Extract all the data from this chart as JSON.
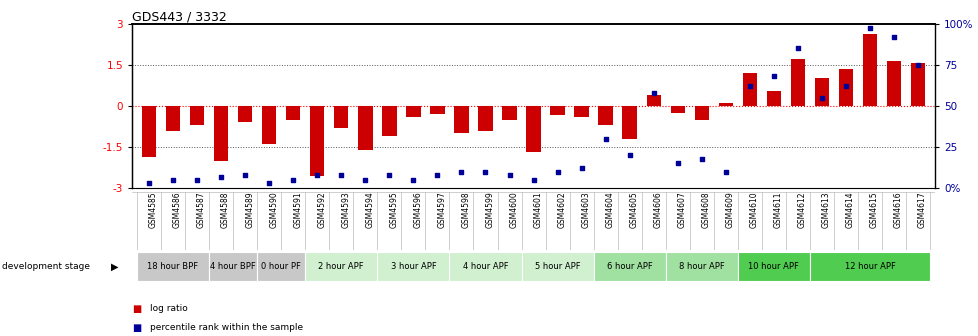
{
  "title": "GDS443 / 3332",
  "samples": [
    "GSM4585",
    "GSM4586",
    "GSM4587",
    "GSM4588",
    "GSM4589",
    "GSM4590",
    "GSM4591",
    "GSM4592",
    "GSM4593",
    "GSM4594",
    "GSM4595",
    "GSM4596",
    "GSM4597",
    "GSM4598",
    "GSM4599",
    "GSM4600",
    "GSM4601",
    "GSM4602",
    "GSM4603",
    "GSM4604",
    "GSM4605",
    "GSM4606",
    "GSM4607",
    "GSM4608",
    "GSM4609",
    "GSM4610",
    "GSM4611",
    "GSM4612",
    "GSM4613",
    "GSM4614",
    "GSM4615",
    "GSM4616",
    "GSM4617"
  ],
  "log_ratios": [
    -1.85,
    -0.9,
    -0.7,
    -2.0,
    -0.6,
    -1.4,
    -0.5,
    -2.55,
    -0.8,
    -1.6,
    -1.1,
    -0.4,
    -0.3,
    -1.0,
    -0.9,
    -0.5,
    -1.7,
    -0.35,
    -0.4,
    -0.7,
    -1.2,
    0.4,
    -0.25,
    -0.5,
    0.1,
    1.2,
    0.55,
    1.7,
    1.0,
    1.35,
    2.6,
    1.65,
    1.55
  ],
  "percentile_ranks": [
    3,
    5,
    5,
    7,
    8,
    3,
    5,
    8,
    8,
    5,
    8,
    5,
    8,
    10,
    10,
    8,
    5,
    10,
    12,
    30,
    20,
    58,
    15,
    18,
    10,
    62,
    68,
    85,
    55,
    62,
    97,
    92,
    75
  ],
  "stage_groups": [
    {
      "label": "18 hour BPF",
      "start": 0,
      "end": 3,
      "color": "#c8c8c8"
    },
    {
      "label": "4 hour BPF",
      "start": 3,
      "end": 5,
      "color": "#c8c8c8"
    },
    {
      "label": "0 hour PF",
      "start": 5,
      "end": 7,
      "color": "#c8c8c8"
    },
    {
      "label": "2 hour APF",
      "start": 7,
      "end": 10,
      "color": "#d0f0d0"
    },
    {
      "label": "3 hour APF",
      "start": 10,
      "end": 13,
      "color": "#d0f0d0"
    },
    {
      "label": "4 hour APF",
      "start": 13,
      "end": 16,
      "color": "#d0f0d0"
    },
    {
      "label": "5 hour APF",
      "start": 16,
      "end": 19,
      "color": "#d0f0d0"
    },
    {
      "label": "6 hour APF",
      "start": 19,
      "end": 22,
      "color": "#a0e0a0"
    },
    {
      "label": "8 hour APF",
      "start": 22,
      "end": 25,
      "color": "#a0e0a0"
    },
    {
      "label": "10 hour APF",
      "start": 25,
      "end": 28,
      "color": "#50cc50"
    },
    {
      "label": "12 hour APF",
      "start": 28,
      "end": 33,
      "color": "#50cc50"
    }
  ],
  "bar_color": "#cc0000",
  "dot_color": "#000099",
  "ylim_left": [
    -3,
    3
  ],
  "ylim_right": [
    0,
    100
  ],
  "yticks_left": [
    -3,
    -1.5,
    0,
    1.5,
    3
  ],
  "yticks_right": [
    0,
    25,
    50,
    75,
    100
  ],
  "yticklabels_left": [
    "-3",
    "-1.5",
    "0",
    "1.5",
    "3"
  ],
  "yticklabels_right": [
    "0%",
    "25",
    "50",
    "75",
    "100%"
  ]
}
